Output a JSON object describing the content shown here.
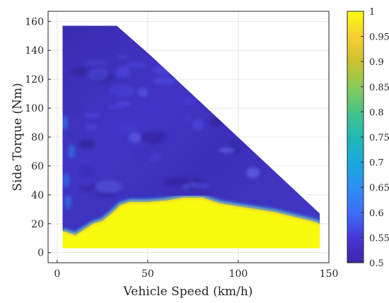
{
  "chart_data": {
    "type": "heatmap",
    "title": "",
    "xlabel": "Vehicle Speed (km/h)",
    "ylabel": "Side Torque (Nm)",
    "xlim": [
      -5,
      150
    ],
    "ylim": [
      -7,
      167
    ],
    "xticks": [
      "0",
      "50",
      "100",
      "150"
    ],
    "yticks": [
      "0",
      "20",
      "40",
      "60",
      "80",
      "100",
      "120",
      "140",
      "160"
    ],
    "grid": true,
    "colormap": "parula",
    "colorbar": {
      "range": [
        0.5,
        1
      ],
      "ticks": [
        "0.5",
        "0.55",
        "0.6",
        "0.65",
        "0.7",
        "0.75",
        "0.8",
        "0.85",
        "0.9",
        "0.95",
        "1"
      ]
    },
    "colors": {
      "low": "#3e26a8",
      "mid": "#20b3c4",
      "high": "#f9fb0e",
      "grid": "#e6e6e6",
      "axis": "#262626"
    },
    "domain_outline": [
      [
        3,
        157
      ],
      [
        33,
        157
      ],
      [
        52,
        136
      ],
      [
        145,
        27
      ],
      [
        145,
        3
      ],
      [
        3,
        3
      ]
    ],
    "high_region_boundary": [
      [
        3,
        15
      ],
      [
        10,
        12
      ],
      [
        15,
        16
      ],
      [
        20,
        20
      ],
      [
        25,
        22
      ],
      [
        30,
        27
      ],
      [
        35,
        33
      ],
      [
        40,
        35
      ],
      [
        50,
        35
      ],
      [
        60,
        36
      ],
      [
        70,
        38
      ],
      [
        80,
        38
      ],
      [
        90,
        34
      ],
      [
        100,
        32
      ],
      [
        110,
        30
      ],
      [
        120,
        28
      ],
      [
        130,
        25
      ],
      [
        140,
        22
      ],
      [
        145,
        20
      ]
    ],
    "value_in_high_region": 1,
    "value_in_low_region": 0.55
  }
}
